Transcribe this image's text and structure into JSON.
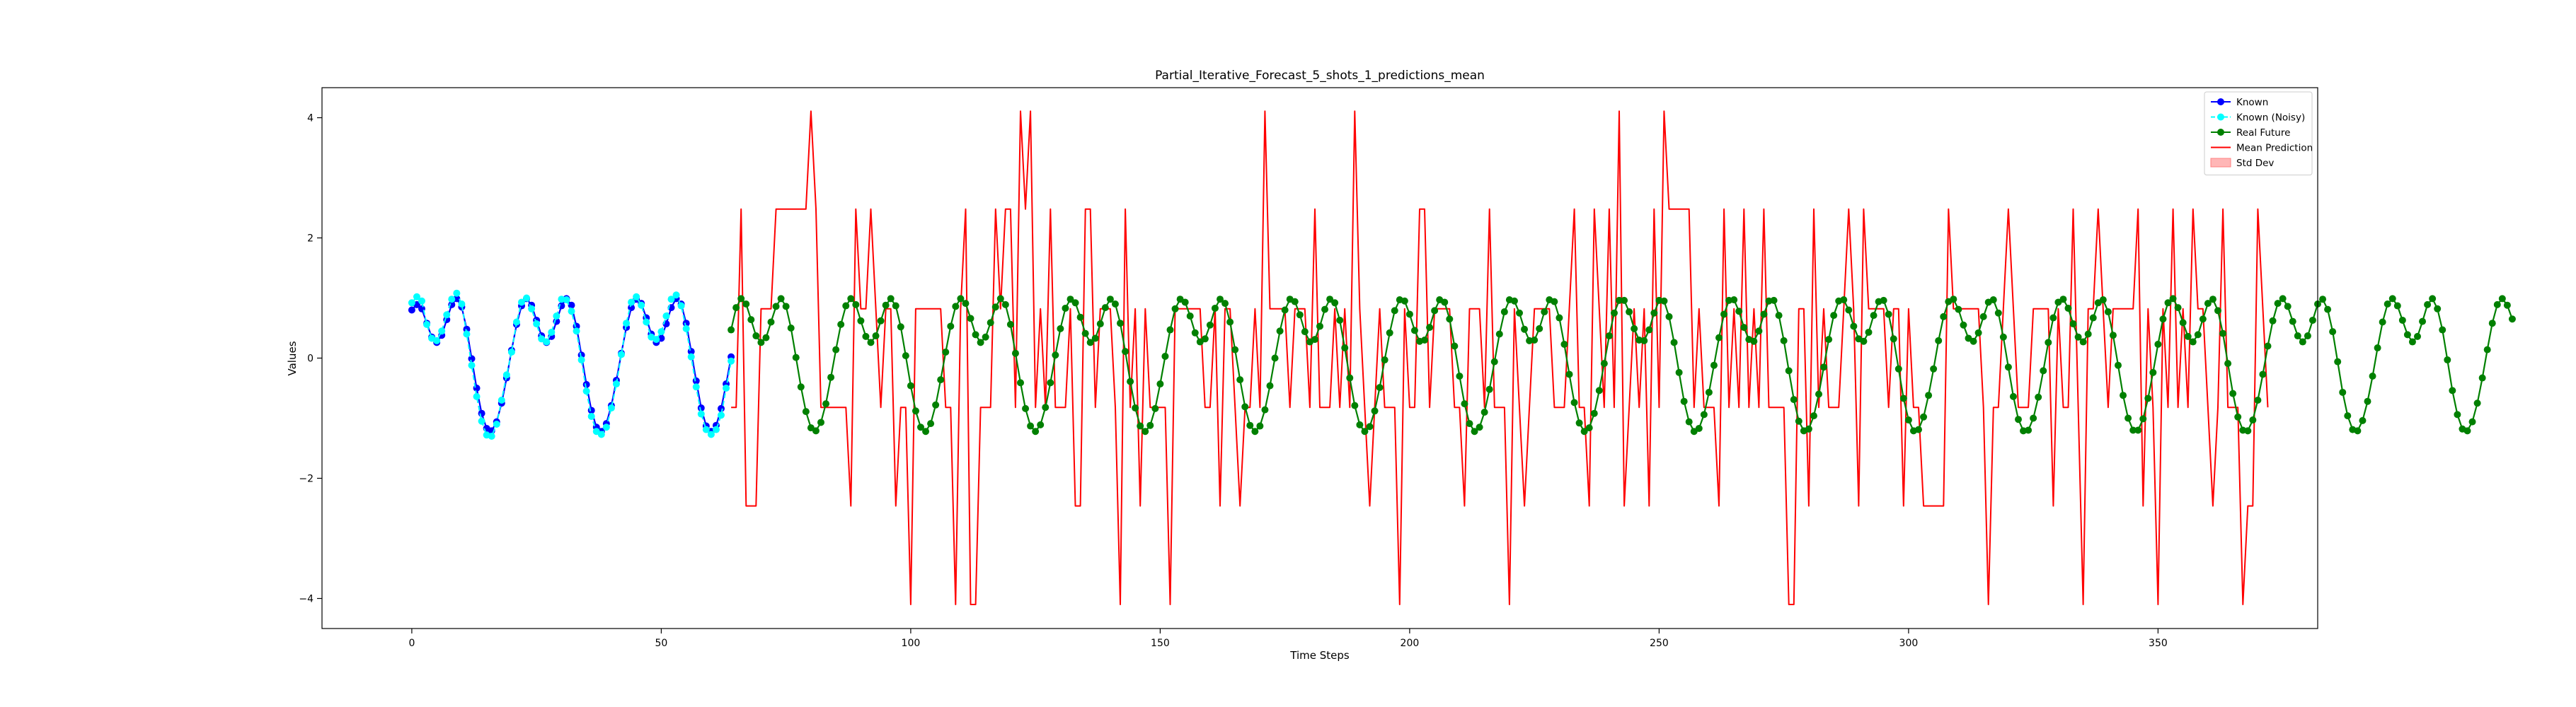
{
  "chart_data": {
    "type": "line",
    "title": "Partial_Iterative_Forecast_5_shots_1_predictions_mean",
    "xlabel": "Time Steps",
    "ylabel": "Values",
    "xlim": [
      -18,
      382
    ],
    "ylim": [
      -4.5,
      4.5
    ],
    "xticks": [
      0,
      50,
      100,
      150,
      200,
      250,
      300,
      350
    ],
    "yticks": [
      -4,
      -2,
      0,
      2,
      4
    ],
    "ytick_labels": [
      "−4",
      "−2",
      "0",
      "2",
      "4"
    ],
    "grid": false,
    "legend_position": "top-right",
    "legend": [
      {
        "label": "Known",
        "color": "#0000ff",
        "style": "line-marker"
      },
      {
        "label": "Known (Noisy)",
        "color": "#00ffff",
        "style": "dashed-marker"
      },
      {
        "label": "Real Future",
        "color": "#008000",
        "style": "line-marker"
      },
      {
        "label": "Mean Prediction",
        "color": "#ff0000",
        "style": "line"
      },
      {
        "label": "Std Dev",
        "color": "#ffb6b6",
        "style": "patch"
      }
    ],
    "series": [
      {
        "name": "Known",
        "color": "#0000ff",
        "x_start": 0,
        "values": [
          0.8,
          0.89,
          0.82,
          0.58,
          0.35,
          0.26,
          0.38,
          0.64,
          0.89,
          0.99,
          0.85,
          0.48,
          -0.01,
          -0.5,
          -0.92,
          -1.17,
          -1.21,
          -1.06,
          -0.75,
          -0.33,
          0.13,
          0.56,
          0.87,
          0.99,
          0.88,
          0.63,
          0.37,
          0.26,
          0.36,
          0.61,
          0.87,
          0.99,
          0.88,
          0.53,
          0.05,
          -0.44,
          -0.87,
          -1.15,
          -1.22,
          -1.09,
          -0.79,
          -0.37,
          0.08,
          0.51,
          0.84,
          0.98,
          0.91,
          0.67,
          0.4,
          0.26,
          0.33,
          0.57,
          0.84,
          0.99,
          0.9,
          0.58,
          0.11,
          -0.38,
          -0.83,
          -1.13,
          -1.22,
          -1.12,
          -0.84,
          -0.43,
          0.02
        ]
      },
      {
        "name": "Known (Noisy)",
        "color": "#00ffff",
        "x_start": 0,
        "values": [
          0.92,
          1.02,
          0.95,
          0.56,
          0.33,
          0.29,
          0.45,
          0.72,
          0.98,
          1.08,
          0.9,
          0.4,
          -0.12,
          -0.64,
          -1.05,
          -1.28,
          -1.3,
          -1.1,
          -0.7,
          -0.28,
          0.1,
          0.6,
          0.93,
          1.0,
          0.82,
          0.57,
          0.32,
          0.27,
          0.43,
          0.7,
          0.98,
          0.97,
          0.78,
          0.45,
          -0.03,
          -0.55,
          -0.97,
          -1.22,
          -1.27,
          -1.15,
          -0.83,
          -0.43,
          0.06,
          0.58,
          0.93,
          1.02,
          0.88,
          0.6,
          0.35,
          0.31,
          0.44,
          0.7,
          0.98,
          1.05,
          0.87,
          0.49,
          0.02,
          -0.48,
          -0.93,
          -1.19,
          -1.27,
          -1.19,
          -0.95,
          -0.5,
          -0.05
        ]
      },
      {
        "name": "Real Future",
        "color": "#008000",
        "x_start": 64,
        "values": [
          0.47,
          0.84,
          0.99,
          0.9,
          0.64,
          0.37,
          0.26,
          0.34,
          0.6,
          0.86,
          0.99,
          0.86,
          0.5,
          0.01,
          -0.48,
          -0.89,
          -1.16,
          -1.21,
          -1.07,
          -0.76,
          -0.32,
          0.14,
          0.56,
          0.87,
          0.99,
          0.89,
          0.62,
          0.36,
          0.26,
          0.37,
          0.62,
          0.88,
          0.99,
          0.87,
          0.52,
          0.04,
          -0.46,
          -0.88,
          -1.15,
          -1.22,
          -1.09,
          -0.78,
          -0.36,
          0.1,
          0.53,
          0.86,
          0.99,
          0.91,
          0.66,
          0.39,
          0.26,
          0.35,
          0.59,
          0.85,
          0.99,
          0.89,
          0.56,
          0.08,
          -0.41,
          -0.84,
          -1.13,
          -1.22,
          -1.11,
          -0.82,
          -0.41,
          0.05,
          0.49,
          0.83,
          0.98,
          0.92,
          0.68,
          0.41,
          0.26,
          0.33,
          0.57,
          0.84,
          0.98,
          0.9,
          0.58,
          0.11,
          -0.39,
          -0.83,
          -1.13,
          -1.22,
          -1.12,
          -0.84,
          -0.43,
          0.03,
          0.47,
          0.82,
          0.98,
          0.93,
          0.7,
          0.42,
          0.27,
          0.32,
          0.55,
          0.83,
          0.98,
          0.91,
          0.6,
          0.14,
          -0.36,
          -0.81,
          -1.12,
          -1.22,
          -1.13,
          -0.86,
          -0.46,
          0.0,
          0.45,
          0.8,
          0.98,
          0.94,
          0.72,
          0.44,
          0.27,
          0.31,
          0.53,
          0.81,
          0.98,
          0.92,
          0.63,
          0.17,
          -0.33,
          -0.79,
          -1.11,
          -1.22,
          -1.14,
          -0.88,
          -0.49,
          -0.03,
          0.42,
          0.79,
          0.97,
          0.95,
          0.73,
          0.46,
          0.28,
          0.3,
          0.51,
          0.79,
          0.97,
          0.93,
          0.65,
          0.2,
          -0.3,
          -0.76,
          -1.09,
          -1.22,
          -1.15,
          -0.9,
          -0.52,
          -0.06,
          0.4,
          0.77,
          0.97,
          0.95,
          0.75,
          0.48,
          0.29,
          0.3,
          0.49,
          0.77,
          0.97,
          0.94,
          0.67,
          0.23,
          -0.27,
          -0.74,
          -1.08,
          -1.22,
          -1.16,
          -0.92,
          -0.54,
          -0.09,
          0.37,
          0.75,
          0.96,
          0.96,
          0.77,
          0.49,
          0.3,
          0.29,
          0.47,
          0.75,
          0.96,
          0.95,
          0.69,
          0.26,
          -0.24,
          -0.72,
          -1.06,
          -1.22,
          -1.17,
          -0.94,
          -0.57,
          -0.12,
          0.34,
          0.73,
          0.96,
          0.97,
          0.78,
          0.51,
          0.31,
          0.28,
          0.45,
          0.73,
          0.95,
          0.96,
          0.71,
          0.29,
          -0.21,
          -0.69,
          -1.05,
          -1.21,
          -1.18,
          -0.96,
          -0.6,
          -0.15,
          0.31,
          0.71,
          0.95,
          0.97,
          0.8,
          0.53,
          0.32,
          0.28,
          0.43,
          0.71,
          0.94,
          0.96,
          0.73,
          0.32,
          -0.18,
          -0.67,
          -1.03,
          -1.21,
          -1.19,
          -0.98,
          -0.62,
          -0.18,
          0.29,
          0.69,
          0.94,
          0.98,
          0.81,
          0.55,
          0.33,
          0.28,
          0.42,
          0.69,
          0.93,
          0.97,
          0.75,
          0.35,
          -0.15,
          -0.64,
          -1.02,
          -1.21,
          -1.2,
          -1.0,
          -0.65,
          -0.21,
          0.26,
          0.67,
          0.93,
          0.98,
          0.83,
          0.57,
          0.35,
          0.27,
          0.4,
          0.67,
          0.92,
          0.97,
          0.77,
          0.38,
          -0.12,
          -0.62,
          -1.0,
          -1.2,
          -1.2,
          -1.01,
          -0.67,
          -0.24,
          0.23,
          0.65,
          0.92,
          0.99,
          0.84,
          0.59,
          0.36,
          0.27,
          0.39,
          0.65,
          0.91,
          0.98,
          0.79,
          0.41,
          -0.09,
          -0.59,
          -0.98,
          -1.2,
          -1.21,
          -1.03,
          -0.7,
          -0.27,
          0.2,
          0.62,
          0.91,
          0.99,
          0.86,
          0.61,
          0.37,
          0.27,
          0.37,
          0.63,
          0.9,
          0.98,
          0.81,
          0.44,
          -0.06,
          -0.57,
          -0.96,
          -1.19,
          -1.21,
          -1.04,
          -0.72,
          -0.3,
          0.17,
          0.6,
          0.9,
          0.99,
          0.87,
          0.63,
          0.39,
          0.27,
          0.36,
          0.61,
          0.89,
          0.99,
          0.82,
          0.47,
          -0.03,
          -0.54,
          -0.94,
          -1.18,
          -1.21,
          -1.06,
          -0.75,
          -0.33,
          0.14,
          0.58,
          0.89,
          0.99,
          0.88,
          0.65
        ]
      },
      {
        "name": "Mean Prediction",
        "color": "#ff0000",
        "x_start": 64,
        "values": [
          -0.82,
          -0.82,
          2.48,
          -2.46,
          -2.46,
          -2.46,
          0.82,
          0.82,
          0.82,
          2.48,
          2.48,
          2.48,
          2.48,
          2.48,
          2.48,
          2.48,
          4.11,
          2.48,
          -0.82,
          -0.82,
          -0.82,
          -0.82,
          -0.82,
          -0.82,
          -2.46,
          2.48,
          0.82,
          0.82,
          2.48,
          0.82,
          -0.82,
          0.82,
          0.82,
          -2.46,
          -0.82,
          -0.82,
          -4.1,
          0.82,
          0.82,
          0.82,
          0.82,
          0.82,
          0.82,
          -0.82,
          -0.82,
          -4.1,
          0.82,
          2.48,
          -4.1,
          -4.1,
          -0.82,
          -0.82,
          -0.82,
          2.48,
          0.82,
          2.48,
          2.48,
          -0.82,
          4.11,
          2.48,
          4.11,
          -0.82,
          0.82,
          -0.82,
          2.48,
          -0.82,
          -0.82,
          -0.82,
          0.82,
          -2.46,
          -2.46,
          2.48,
          2.48,
          -0.82,
          0.82,
          0.82,
          0.82,
          -0.82,
          -4.1,
          2.48,
          -0.82,
          0.82,
          -2.46,
          0.82,
          -0.82,
          -0.82,
          -0.82,
          -0.82,
          -4.1,
          0.82,
          0.82,
          0.82,
          0.82,
          0.82,
          0.82,
          -0.82,
          -0.82,
          0.82,
          -2.46,
          0.82,
          0.82,
          -0.82,
          -2.46,
          -0.82,
          -0.82,
          0.82,
          -0.82,
          4.11,
          0.82,
          0.82,
          0.82,
          0.82,
          -0.82,
          0.82,
          0.82,
          0.82,
          -0.82,
          2.48,
          -0.82,
          -0.82,
          -0.82,
          0.82,
          -0.82,
          0.82,
          -0.82,
          4.11,
          0.82,
          -0.82,
          -2.46,
          -0.82,
          0.82,
          -0.82,
          -0.82,
          -0.82,
          -4.1,
          0.82,
          -0.82,
          -0.82,
          2.48,
          2.48,
          -0.82,
          0.82,
          0.82,
          0.82,
          0.82,
          -0.82,
          -0.82,
          -2.46,
          0.82,
          0.82,
          0.82,
          -0.82,
          2.48,
          -0.82,
          -0.82,
          -0.82,
          -4.1,
          0.82,
          -0.82,
          -2.46,
          -0.82,
          0.82,
          0.82,
          0.82,
          0.82,
          -0.82,
          -0.82,
          -0.82,
          0.82,
          2.48,
          -0.82,
          -0.82,
          -2.46,
          2.48,
          0.82,
          -0.82,
          2.48,
          -0.82,
          4.11,
          -2.46,
          -0.82,
          0.82,
          -0.82,
          0.82,
          -2.46,
          2.48,
          -0.82,
          4.11,
          2.48,
          2.48,
          2.48,
          2.48,
          2.48,
          -0.82,
          0.82,
          -0.82,
          -0.82,
          -0.82,
          -2.46,
          2.48,
          -0.82,
          0.82,
          -0.82,
          2.48,
          -0.82,
          0.82,
          -0.82,
          2.48,
          -0.82,
          -0.82,
          -0.82,
          -0.82,
          -4.1,
          -4.1,
          0.82,
          0.82,
          -2.46,
          2.48,
          -0.82,
          0.82,
          -0.82,
          -0.82,
          -0.82,
          0.82,
          2.48,
          0.82,
          -2.46,
          2.48,
          0.82,
          0.82,
          0.82,
          0.82,
          -0.82,
          0.82,
          0.82,
          -2.46,
          0.82,
          -0.82,
          -0.82,
          -2.46,
          -2.46,
          -2.46,
          -2.46,
          -2.46,
          2.48,
          0.82,
          0.82,
          0.82,
          0.82,
          0.82,
          0.82,
          -0.82,
          -4.1,
          -0.82,
          -0.82,
          0.82,
          2.48,
          0.82,
          -0.82,
          -0.82,
          -0.82,
          0.82,
          0.82,
          0.82,
          0.82,
          -2.46,
          0.82,
          -0.82,
          -0.82,
          2.48,
          -0.82,
          -4.1,
          0.82,
          0.82,
          2.48,
          0.82,
          -0.82,
          0.82,
          0.82,
          0.82,
          0.82,
          0.82,
          2.48,
          -2.46,
          0.82,
          -0.82,
          -4.1,
          0.82,
          -0.82,
          2.48,
          -0.82,
          0.82,
          -0.82,
          2.48,
          0.82,
          0.82,
          -0.82,
          -2.46,
          -0.82,
          2.48,
          -0.82,
          -0.82,
          -0.82,
          -4.1,
          -2.46,
          -2.46,
          2.48,
          0.82,
          -0.82
        ]
      }
    ]
  }
}
